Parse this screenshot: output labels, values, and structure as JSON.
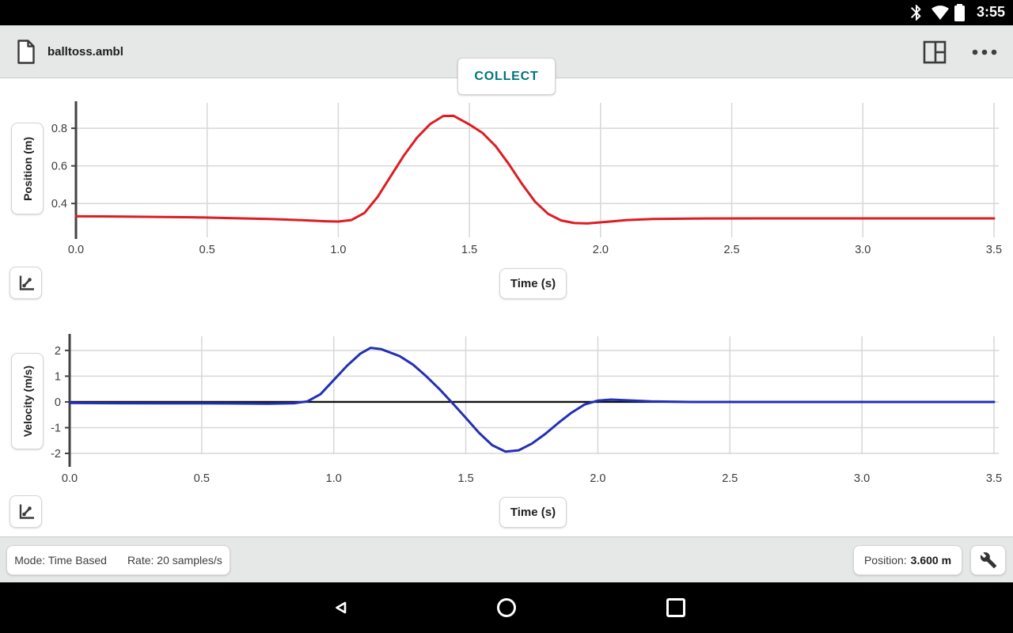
{
  "status_bar": {
    "time": "3:55"
  },
  "app_bar": {
    "file_name": "balltoss.ambl",
    "collect_label": "COLLECT"
  },
  "bottom_bar": {
    "mode_label": "Mode: Time Based",
    "rate_label": "Rate: 20 samples/s",
    "position_label": "Position:",
    "position_value": "3.600 m"
  },
  "colors": {
    "position_line": "#dc1d23",
    "velocity_line": "#2230b4",
    "accent_teal": "#00737e",
    "grid": "#d7d7d7",
    "axis": "#424242",
    "zero_line": "#111111"
  },
  "chart_data": [
    {
      "type": "line",
      "title": "",
      "xlabel": "Time (s)",
      "ylabel": "Position (m)",
      "color": "#dc1d23",
      "grid": "on",
      "legend": "none",
      "xlim": [
        0,
        3.5
      ],
      "ylim": [
        0.22,
        0.935
      ],
      "xticks": [
        0,
        0.5,
        1.0,
        1.5,
        2.0,
        2.5,
        3.0,
        3.5
      ],
      "xtick_labels": [
        "0.0",
        "0.5",
        "1.0",
        "1.5",
        "2.0",
        "2.5",
        "3.0",
        "3.5"
      ],
      "yticks": [
        0.4,
        0.6,
        0.8
      ],
      "ytick_labels": [
        "0.4",
        "0.6",
        "0.8"
      ],
      "zero_line": false,
      "points": [
        [
          0,
          0.332
        ],
        [
          0.15,
          0.331
        ],
        [
          0.3,
          0.329
        ],
        [
          0.45,
          0.327
        ],
        [
          0.6,
          0.322
        ],
        [
          0.75,
          0.317
        ],
        [
          0.85,
          0.312
        ],
        [
          0.95,
          0.306
        ],
        [
          1.0,
          0.304
        ],
        [
          1.05,
          0.312
        ],
        [
          1.1,
          0.35
        ],
        [
          1.15,
          0.435
        ],
        [
          1.2,
          0.545
        ],
        [
          1.25,
          0.655
        ],
        [
          1.3,
          0.75
        ],
        [
          1.35,
          0.822
        ],
        [
          1.4,
          0.865
        ],
        [
          1.44,
          0.866
        ],
        [
          1.5,
          0.82
        ],
        [
          1.55,
          0.775
        ],
        [
          1.6,
          0.705
        ],
        [
          1.65,
          0.61
        ],
        [
          1.7,
          0.505
        ],
        [
          1.75,
          0.41
        ],
        [
          1.8,
          0.345
        ],
        [
          1.85,
          0.31
        ],
        [
          1.9,
          0.296
        ],
        [
          1.95,
          0.294
        ],
        [
          2.0,
          0.3
        ],
        [
          2.05,
          0.306
        ],
        [
          2.1,
          0.312
        ],
        [
          2.2,
          0.318
        ],
        [
          2.35,
          0.32
        ],
        [
          2.6,
          0.321
        ],
        [
          3.0,
          0.321
        ],
        [
          3.5,
          0.321
        ]
      ]
    },
    {
      "type": "line",
      "title": "",
      "xlabel": "Time (s)",
      "ylabel": "Velocity (m/s)",
      "color": "#2230b4",
      "grid": "on",
      "legend": "none",
      "xlim": [
        0,
        3.5
      ],
      "ylim": [
        -2.03,
        2.55
      ],
      "xticks": [
        0,
        0.5,
        1.0,
        1.5,
        2.0,
        2.5,
        3.0,
        3.5
      ],
      "xtick_labels": [
        "0.0",
        "0.5",
        "1.0",
        "1.5",
        "2.0",
        "2.5",
        "3.0",
        "3.5"
      ],
      "yticks": [
        -2,
        -1,
        0,
        1,
        2
      ],
      "ytick_labels": [
        "-2",
        "-1",
        "0",
        "1",
        "2"
      ],
      "zero_line": true,
      "points": [
        [
          0,
          -0.04
        ],
        [
          0.2,
          -0.05
        ],
        [
          0.4,
          -0.055
        ],
        [
          0.6,
          -0.06
        ],
        [
          0.75,
          -0.07
        ],
        [
          0.85,
          -0.05
        ],
        [
          0.9,
          0.02
        ],
        [
          0.95,
          0.3
        ],
        [
          1.0,
          0.85
        ],
        [
          1.05,
          1.4
        ],
        [
          1.1,
          1.87
        ],
        [
          1.14,
          2.1
        ],
        [
          1.18,
          2.05
        ],
        [
          1.25,
          1.78
        ],
        [
          1.3,
          1.45
        ],
        [
          1.35,
          1.0
        ],
        [
          1.4,
          0.5
        ],
        [
          1.45,
          -0.05
        ],
        [
          1.5,
          -0.62
        ],
        [
          1.55,
          -1.2
        ],
        [
          1.6,
          -1.68
        ],
        [
          1.65,
          -1.93
        ],
        [
          1.7,
          -1.88
        ],
        [
          1.75,
          -1.62
        ],
        [
          1.8,
          -1.25
        ],
        [
          1.85,
          -0.82
        ],
        [
          1.9,
          -0.42
        ],
        [
          1.95,
          -0.1
        ],
        [
          2.0,
          0.05
        ],
        [
          2.05,
          0.09
        ],
        [
          2.1,
          0.07
        ],
        [
          2.2,
          0.02
        ],
        [
          2.35,
          0.0
        ],
        [
          2.8,
          0.0
        ],
        [
          3.5,
          0.0
        ]
      ]
    }
  ]
}
